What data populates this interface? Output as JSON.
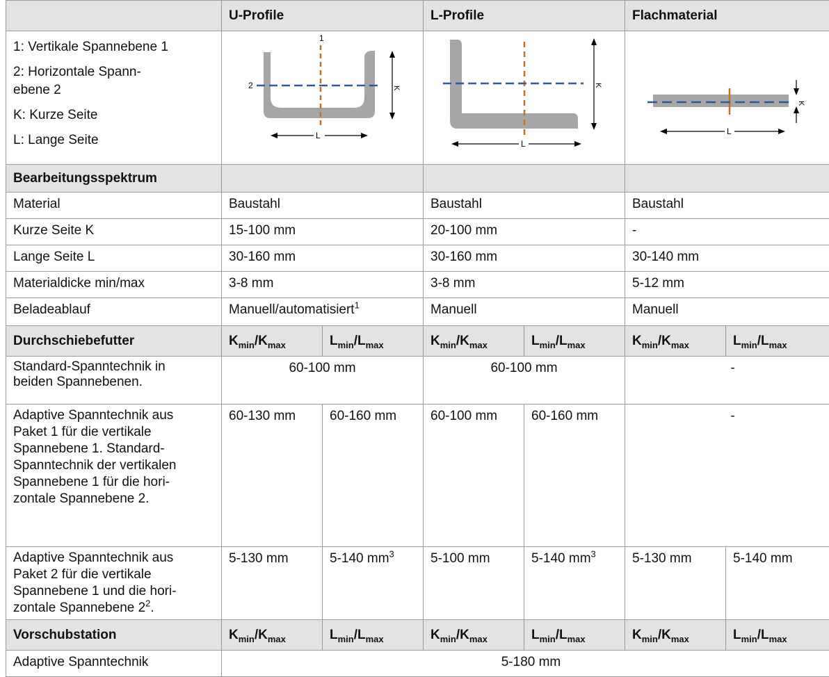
{
  "header": {
    "col_u": "U-Profile",
    "col_l": "L-Profile",
    "col_flat": "Flachmaterial"
  },
  "legend": [
    "1: Vertikale Spannebene 1",
    "2: Horizontale Spann-ebene 2",
    "K: Kurze Seite",
    "L: Lange Seite"
  ],
  "legend_lines": {
    "l1": "1: Vertikale Spannebene 1",
    "l2a": "2: Horizontale Spann-",
    "l2b": "ebene 2",
    "l3": "K: Kurze Seite",
    "l4": "L: Lange Seite"
  },
  "diagram_labels": {
    "one": "1",
    "two": "2",
    "k": "K",
    "l": "L"
  },
  "sections": {
    "spectrum": "Bearbeitungsspektrum",
    "through": "Durchschiebefutter",
    "feed": "Vorschubstation"
  },
  "spectrum_rows": [
    {
      "label": "Material",
      "u": "Baustahl",
      "l": "Baustahl",
      "f": "Baustahl"
    },
    {
      "label": "Kurze Seite K",
      "u": "15-100 mm",
      "l": "20-100 mm",
      "f": "-"
    },
    {
      "label": "Lange Seite L",
      "u": "30-160 mm",
      "l": "30-160 mm",
      "f": "30-140 mm"
    },
    {
      "label": "Materialdicke min/max",
      "u": "3-8 mm",
      "l": "3-8 mm",
      "f": "5-12 mm"
    },
    {
      "label": "Beladeablauf",
      "u": "Manuell/automatisiert",
      "u_sup": "1",
      "l": "Manuell",
      "f": "Manuell"
    }
  ],
  "subheads": {
    "k": "K",
    "k_min": "min",
    "k_max": "max",
    "l": "L",
    "l_min": "min",
    "l_max": "max",
    "slash": "/"
  },
  "through_rows": {
    "standard": {
      "label_a": "Standard-Spanntechnik in",
      "label_b": "beiden Spannebenen.",
      "u": "60-100 mm",
      "l": "60-100 mm",
      "f": "-"
    },
    "adaptive1": {
      "label_lines": [
        "Adaptive Spanntechnik aus",
        "Paket 1 für die vertikale",
        "Spannebene 1. Standard-",
        "Spanntechnik der vertikalen",
        "Spannebene 1 für die hori-",
        "zontale Spannebene 2."
      ],
      "u_k": "60-130 mm",
      "u_l": "60-160 mm",
      "l_k": "60-100 mm",
      "l_l": "60-160 mm",
      "f": "-"
    },
    "adaptive2": {
      "label_lines": [
        "Adaptive Spanntechnik aus",
        "Paket 2 für die vertikale",
        "Spannebene 1 und die hori-"
      ],
      "label_last": "zontale Spannebene 2",
      "label_last_sup": "2",
      "label_last_end": ".",
      "u_k": "5-130 mm",
      "u_l": "5-140 mm",
      "u_l_sup": "3",
      "l_k": "5-100 mm",
      "l_l": "5-140 mm",
      "l_l_sup": "3",
      "f_k": "5-130 mm",
      "f_l": "5-140 mm"
    }
  },
  "feed_row": {
    "label": "Adaptive Spanntechnik",
    "value": "5-180 mm"
  },
  "colors": {
    "header_bg": "#e3e3e3",
    "profile_gray": "#a6a6a6",
    "plane1_orange": "#c9701a",
    "plane2_blue": "#2c5aa0"
  }
}
